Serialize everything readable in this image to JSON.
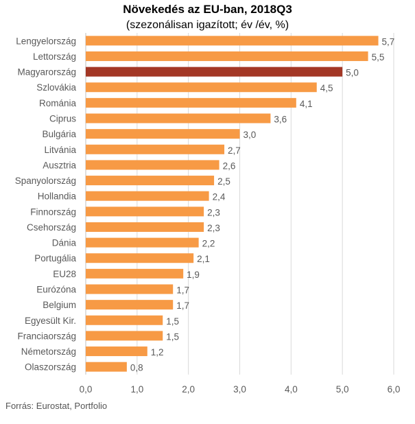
{
  "chart_data": {
    "type": "bar",
    "orientation": "horizontal",
    "title": "Növekedés az EU-ban, 2018Q3",
    "subtitle": "(szezonálisan igazított; év /év, %)",
    "source": "Forrás: Eurostat, Portfolio",
    "categories": [
      "Lengyelország",
      "Lettország",
      "Magyarország",
      "Szlovákia",
      "Románia",
      "Ciprus",
      "Bulgária",
      "Litvánia",
      "Ausztria",
      "Spanyolország",
      "Hollandia",
      "Finnország",
      "Csehország",
      "Dánia",
      "Portugália",
      "EU28",
      "Eurózóna",
      "Belgium",
      "Egyesült Kir.",
      "Franciaország",
      "Németország",
      "Olaszország"
    ],
    "values": [
      5.7,
      5.5,
      5.0,
      4.5,
      4.1,
      3.6,
      3.0,
      2.7,
      2.6,
      2.5,
      2.4,
      2.3,
      2.3,
      2.2,
      2.1,
      1.9,
      1.7,
      1.7,
      1.5,
      1.5,
      1.2,
      0.8
    ],
    "value_labels": [
      "5,7",
      "5,5",
      "5,0",
      "4,5",
      "4,1",
      "3,6",
      "3,0",
      "2,7",
      "2,6",
      "2,5",
      "2,4",
      "2,3",
      "2,3",
      "2,2",
      "2,1",
      "1,9",
      "1,7",
      "1,7",
      "1,5",
      "1,5",
      "1,2",
      "0,8"
    ],
    "xlim": [
      0,
      6
    ],
    "xticks": [
      0,
      1,
      2,
      3,
      4,
      5,
      6
    ],
    "xtick_labels": [
      "0,0",
      "1,0",
      "2,0",
      "3,0",
      "4,0",
      "5,0",
      "6,0"
    ],
    "grid": true,
    "bar_color": "#F79A45",
    "highlight_category": "Magyarország",
    "highlight_color": "#A33725"
  }
}
